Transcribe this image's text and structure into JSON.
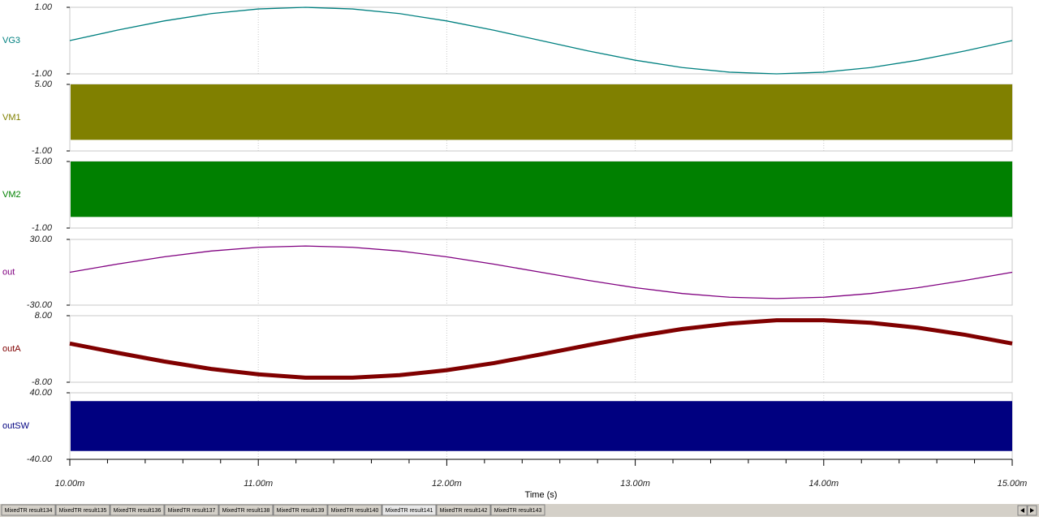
{
  "chart_data": [
    {
      "type": "line",
      "name": "VG3",
      "color": "#008080",
      "ylim": [
        -1,
        1
      ],
      "yticks": [
        {
          "value": -1,
          "label": "-1.00"
        },
        {
          "value": 1,
          "label": "1.00"
        }
      ],
      "x": [
        0.01,
        0.01025,
        0.0105,
        0.01075,
        0.011,
        0.01125,
        0.0115,
        0.01175,
        0.012,
        0.01225,
        0.0125,
        0.01275,
        0.013,
        0.01325,
        0.0135,
        0.01375,
        0.014,
        0.01425,
        0.0145,
        0.01475,
        0.015
      ],
      "values": [
        0,
        0.31,
        0.59,
        0.81,
        0.95,
        1,
        0.95,
        0.81,
        0.59,
        0.31,
        0,
        -0.31,
        -0.59,
        -0.81,
        -0.95,
        -1,
        -0.95,
        -0.81,
        -0.59,
        -0.31,
        0
      ]
    },
    {
      "type": "band",
      "name": "VM1",
      "color": "#808000",
      "ylim": [
        -1,
        5
      ],
      "yticks": [
        {
          "value": -1,
          "label": "-1.00"
        },
        {
          "value": 5,
          "label": "5.00"
        }
      ],
      "low": 0,
      "high": 5
    },
    {
      "type": "band",
      "name": "VM2",
      "color": "#008000",
      "ylim": [
        -1,
        5
      ],
      "yticks": [
        {
          "value": -1,
          "label": "-1.00"
        },
        {
          "value": 5,
          "label": "5.00"
        }
      ],
      "low": 0,
      "high": 5
    },
    {
      "type": "line",
      "name": "out",
      "color": "#800080",
      "ylim": [
        -30,
        30
      ],
      "yticks": [
        {
          "value": -30,
          "label": "-30.00"
        },
        {
          "value": 30,
          "label": "30.00"
        }
      ],
      "x": [
        0.01,
        0.01025,
        0.0105,
        0.01075,
        0.011,
        0.01125,
        0.0115,
        0.01175,
        0.012,
        0.01225,
        0.0125,
        0.01275,
        0.013,
        0.01325,
        0.0135,
        0.01375,
        0.014,
        0.01425,
        0.0145,
        0.01475,
        0.015
      ],
      "values": [
        0,
        7.4,
        14.1,
        19.4,
        22.8,
        24,
        22.8,
        19.4,
        14.1,
        7.4,
        0,
        -7.4,
        -14.1,
        -19.4,
        -22.8,
        -24,
        -22.8,
        -19.4,
        -14.1,
        -7.4,
        0
      ]
    },
    {
      "type": "line",
      "name": "outA",
      "color": "#800000",
      "line_width": 5,
      "ylim": [
        -8,
        8
      ],
      "yticks": [
        {
          "value": -8,
          "label": "-8.00"
        },
        {
          "value": 8,
          "label": "8.00"
        }
      ],
      "x": [
        0.01,
        0.01025,
        0.0105,
        0.01075,
        0.011,
        0.01125,
        0.0115,
        0.01175,
        0.012,
        0.01225,
        0.0125,
        0.01275,
        0.013,
        0.01325,
        0.0135,
        0.01375,
        0.014,
        0.01425,
        0.0145,
        0.01475,
        0.015
      ],
      "values": [
        1.3,
        -0.9,
        -3.0,
        -4.8,
        -6.1,
        -6.9,
        -6.9,
        -6.3,
        -5.1,
        -3.4,
        -1.3,
        0.9,
        3.0,
        4.8,
        6.1,
        6.9,
        6.9,
        6.3,
        5.1,
        3.4,
        1.3
      ]
    },
    {
      "type": "band",
      "name": "outSW",
      "color": "#000080",
      "ylim": [
        -40,
        40
      ],
      "yticks": [
        {
          "value": -40,
          "label": "-40.00"
        },
        {
          "value": 40,
          "label": "40.00"
        }
      ],
      "low": -30,
      "high": 30
    }
  ],
  "x_axis": {
    "label": "Time (s)",
    "xlim": [
      0.01,
      0.015
    ],
    "xticks": [
      {
        "value": 0.01,
        "label": "10.00m"
      },
      {
        "value": 0.011,
        "label": "11.00m"
      },
      {
        "value": 0.012,
        "label": "12.00m"
      },
      {
        "value": 0.013,
        "label": "13.00m"
      },
      {
        "value": 0.014,
        "label": "14.00m"
      },
      {
        "value": 0.015,
        "label": "15.00m"
      }
    ]
  },
  "tabs": [
    "MixedTR result134",
    "MixedTR result135",
    "MixedTR result136",
    "MixedTR result137",
    "MixedTR result138",
    "MixedTR result139",
    "MixedTR result140",
    "MixedTR result141",
    "MixedTR result142",
    "MixedTR result143"
  ]
}
